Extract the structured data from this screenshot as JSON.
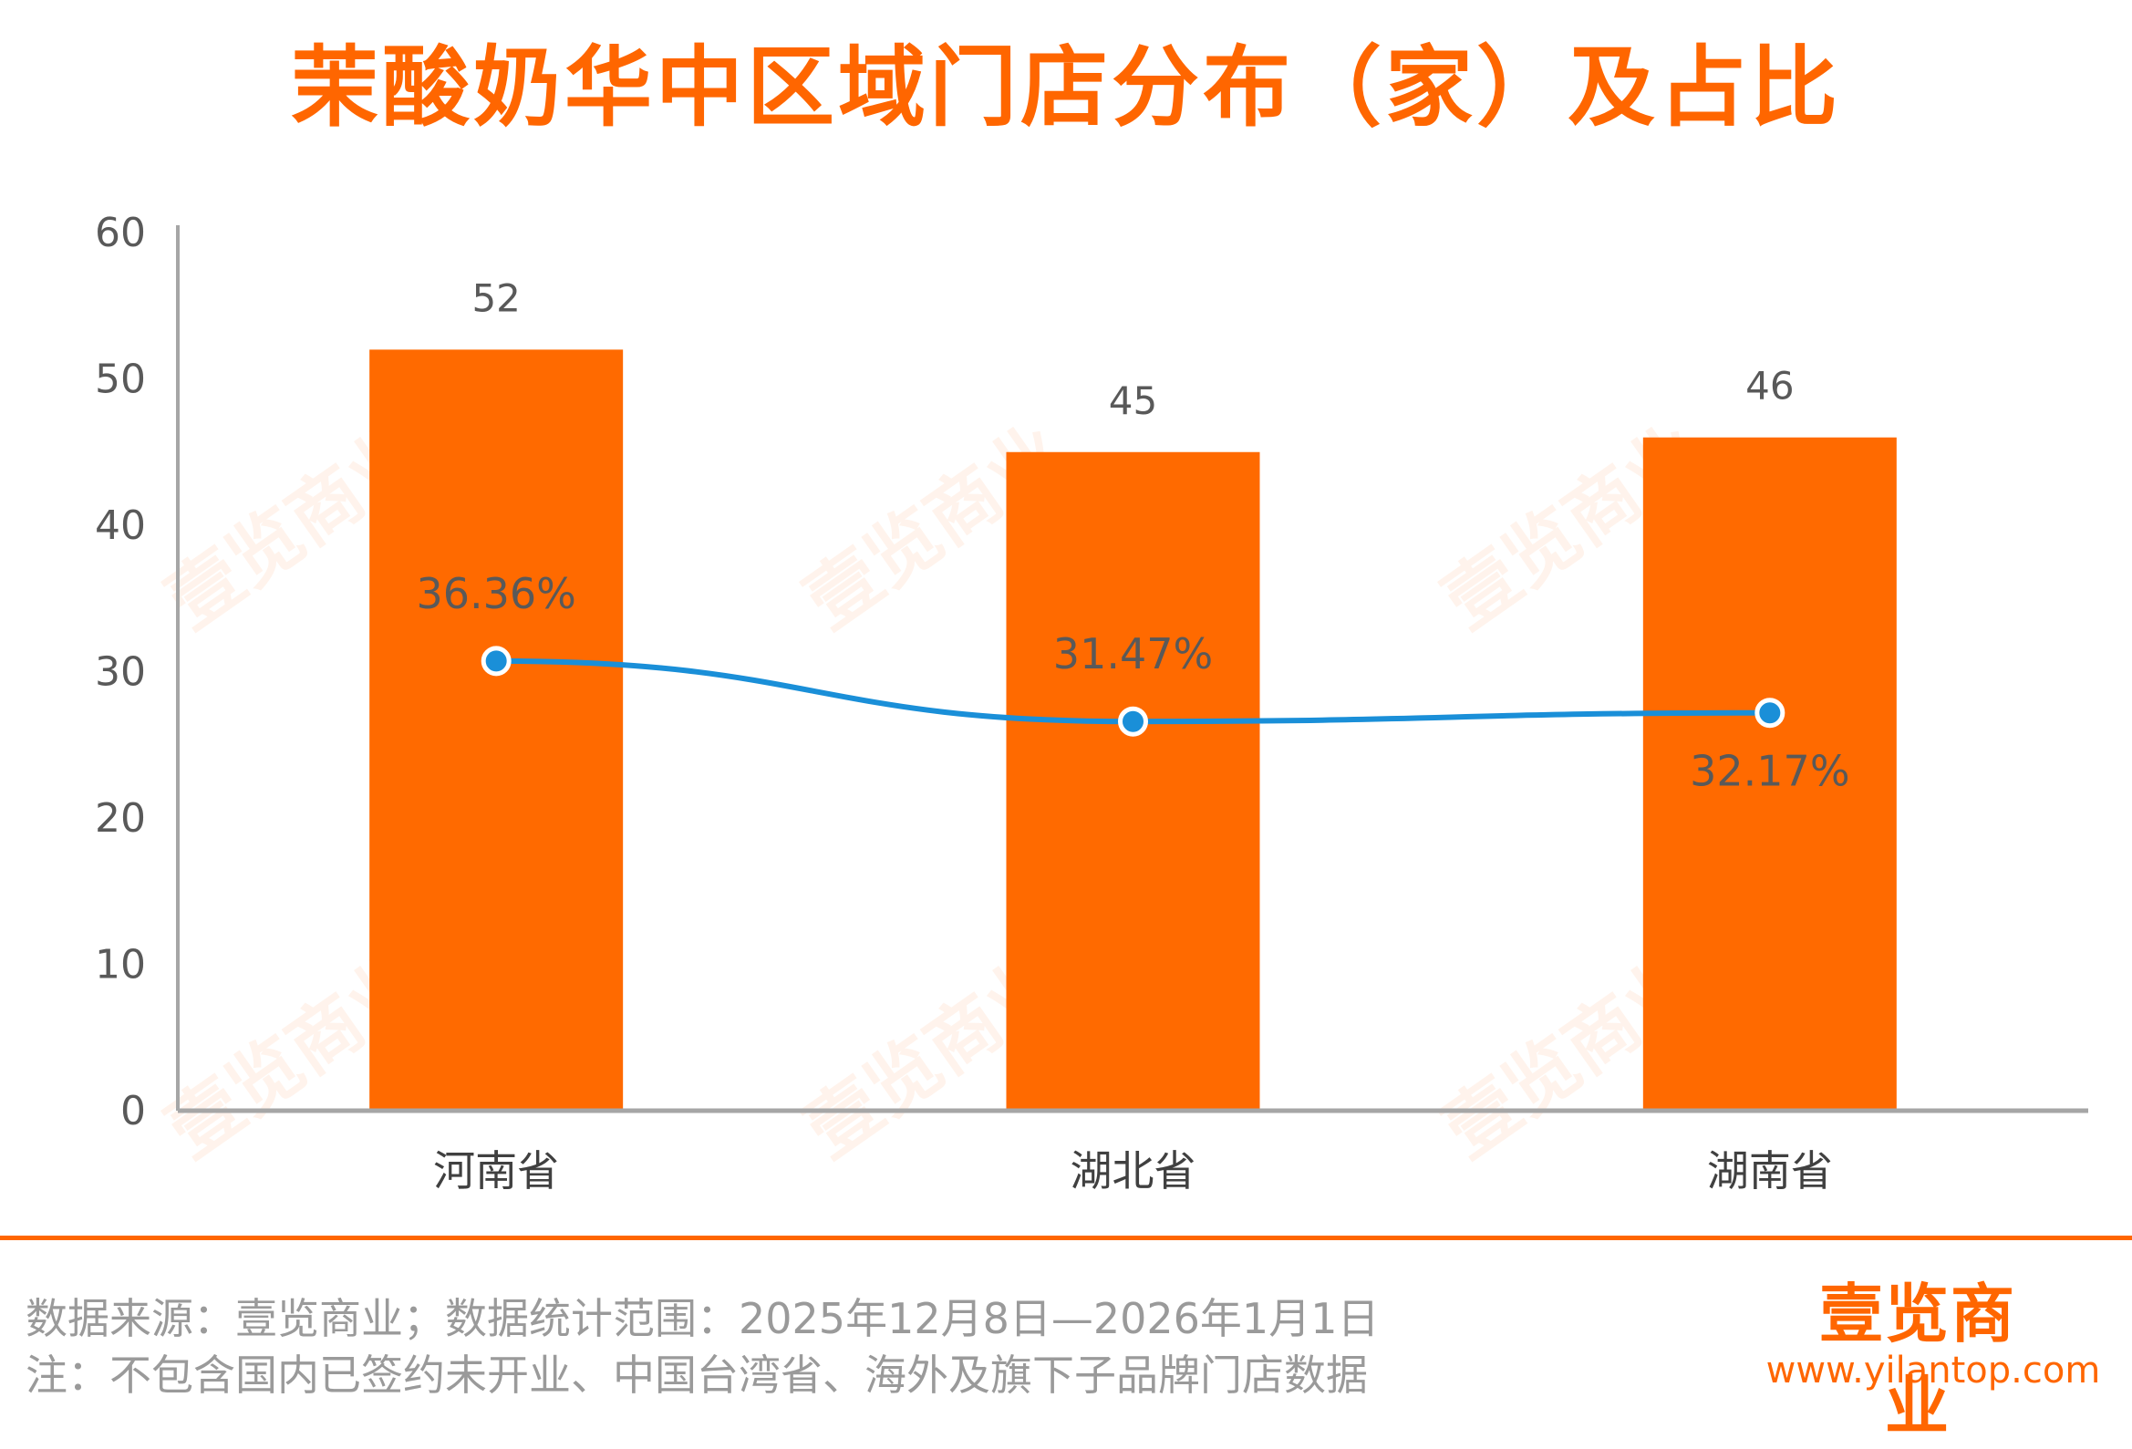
{
  "title": "茉酸奶华中区域门店分布（家）及占比",
  "chart_data": {
    "type": "bar",
    "title": "茉酸奶华中区域门店分布（家）及占比",
    "categories": [
      "河南省",
      "湖北省",
      "湖南省"
    ],
    "series": [
      {
        "type": "bar",
        "values": [
          52,
          45,
          46
        ],
        "data_labels": [
          "52",
          "45",
          "46"
        ],
        "color": "#ff6a00"
      },
      {
        "type": "line",
        "values": [
          36.36,
          31.47,
          32.17
        ],
        "data_labels": [
          "36.36%",
          "31.47%",
          "32.17%"
        ],
        "color": "#1a8fd8"
      }
    ],
    "ylim": [
      0,
      60
    ],
    "yticks": [
      "0",
      "10",
      "20",
      "30",
      "40",
      "50",
      "60"
    ],
    "xlabel": "",
    "ylabel": "",
    "grid": false,
    "legend": "none"
  },
  "footer": {
    "source": "数据来源：壹览商业；数据统计范围：2025年12月8日—2026年1月1日",
    "note": "注：不包含国内已签约未开业、中国台湾省、海外及旗下子品牌门店数据"
  },
  "brand": {
    "logo_text": "壹览商业",
    "url": "www.yilantop.com",
    "watermark": "壹览商业"
  },
  "colors": {
    "accent": "#ff6600",
    "bar": "#ff6a00",
    "line": "#1a8fd8",
    "axis": "#a6a6a6",
    "text": "#595959"
  }
}
